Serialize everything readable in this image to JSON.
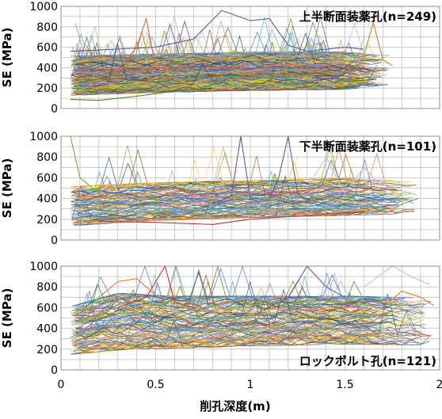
{
  "figure": {
    "xlabel": "削孔深度(m)"
  },
  "chart_data": [
    {
      "type": "line",
      "title": "上半断面装薬孔(n=249)",
      "ylabel": "SE (MPa)",
      "xlim": [
        0,
        2
      ],
      "ylim": [
        0,
        1000
      ],
      "yticks": [
        0,
        200,
        400,
        600,
        800,
        1000
      ],
      "xticks": [
        0,
        0.5,
        1,
        1.5,
        2
      ],
      "grid": true,
      "n_lines": 249,
      "depth_range": [
        0.05,
        1.75
      ],
      "band": [
        [
          0.05,
          120,
          520
        ],
        [
          0.5,
          150,
          540
        ],
        [
          1.0,
          170,
          560
        ],
        [
          1.5,
          180,
          560
        ],
        [
          1.75,
          230,
          520
        ]
      ],
      "median": [
        [
          0.05,
          270
        ],
        [
          0.5,
          300
        ],
        [
          1.0,
          310
        ],
        [
          1.5,
          320
        ],
        [
          1.75,
          350
        ]
      ],
      "highlights": [
        {
          "color": "#5a5aa6",
          "points": [
            [
              0.05,
              560
            ],
            [
              0.5,
              600
            ],
            [
              0.7,
              680
            ],
            [
              0.85,
              960
            ],
            [
              1.0,
              860
            ],
            [
              1.1,
              880
            ],
            [
              1.2,
              620
            ],
            [
              1.3,
              560
            ],
            [
              1.5,
              600
            ],
            [
              1.6,
              580
            ]
          ]
        },
        {
          "color": "#e0662a",
          "points": [
            [
              0.3,
              380
            ],
            [
              0.4,
              600
            ],
            [
              0.45,
              880
            ],
            [
              0.5,
              400
            ],
            [
              0.6,
              380
            ]
          ]
        },
        {
          "color": "#4d7b2a",
          "points": [
            [
              0.05,
              90
            ],
            [
              0.2,
              80
            ],
            [
              0.4,
              120
            ],
            [
              0.6,
              170
            ],
            [
              0.8,
              200
            ]
          ]
        },
        {
          "color": "#e07b2a",
          "points": [
            [
              1.55,
              350
            ],
            [
              1.6,
              520
            ],
            [
              1.65,
              840
            ],
            [
              1.7,
              480
            ],
            [
              1.75,
              420
            ]
          ]
        },
        {
          "color": "#a8a8d8",
          "points": [
            [
              1.25,
              500
            ],
            [
              1.35,
              640
            ],
            [
              1.45,
              480
            ],
            [
              1.6,
              520
            ]
          ]
        }
      ]
    },
    {
      "type": "line",
      "title": "下半断面装薬孔(n=101)",
      "ylabel": "SE (MPa)",
      "xlim": [
        0,
        2
      ],
      "ylim": [
        0,
        1000
      ],
      "yticks": [
        0,
        200,
        400,
        600,
        800,
        1000
      ],
      "xticks": [
        0,
        0.5,
        1,
        1.5,
        2
      ],
      "grid": true,
      "n_lines": 101,
      "depth_range": [
        0.05,
        1.9
      ],
      "band": [
        [
          0.05,
          130,
          520
        ],
        [
          0.5,
          180,
          560
        ],
        [
          1.0,
          210,
          580
        ],
        [
          1.5,
          230,
          600
        ],
        [
          1.9,
          250,
          560
        ]
      ],
      "median": [
        [
          0.05,
          300
        ],
        [
          0.5,
          330
        ],
        [
          1.0,
          350
        ],
        [
          1.5,
          360
        ],
        [
          1.9,
          380
        ]
      ],
      "highlights": [
        {
          "color": "#5a5aa6",
          "points": [
            [
              0.8,
              350
            ],
            [
              0.9,
              420
            ],
            [
              0.95,
              1000
            ],
            [
              1.0,
              400
            ],
            [
              1.05,
              360
            ]
          ]
        },
        {
          "color": "#5a5aa6",
          "points": [
            [
              1.1,
              400
            ],
            [
              1.15,
              600
            ],
            [
              1.2,
              1000
            ],
            [
              1.25,
              450
            ],
            [
              1.3,
              380
            ]
          ]
        },
        {
          "color": "#7aa83c",
          "points": [
            [
              0.05,
              1000
            ],
            [
              0.1,
              600
            ],
            [
              0.2,
              450
            ],
            [
              0.3,
              380
            ]
          ]
        },
        {
          "color": "#c0392b",
          "points": [
            [
              0.2,
              180
            ],
            [
              0.5,
              170
            ],
            [
              0.8,
              150
            ],
            [
              1.0,
              200
            ],
            [
              1.4,
              250
            ],
            [
              1.6,
              270
            ]
          ]
        },
        {
          "color": "#d9b3d9",
          "points": [
            [
              1.3,
              500
            ],
            [
              1.4,
              800
            ],
            [
              1.5,
              450
            ],
            [
              1.6,
              700
            ],
            [
              1.7,
              500
            ]
          ]
        }
      ]
    },
    {
      "type": "line",
      "title": "ロックボルト孔(n=121)",
      "ylabel": "SE (MPa)",
      "xlim": [
        0,
        2
      ],
      "ylim": [
        0,
        1000
      ],
      "yticks": [
        0,
        200,
        400,
        600,
        800,
        1000
      ],
      "xticks": [
        0,
        0.5,
        1,
        1.5,
        2
      ],
      "grid": true,
      "n_lines": 121,
      "depth_range": [
        0.05,
        1.97
      ],
      "band": [
        [
          0.05,
          140,
          620
        ],
        [
          0.3,
          180,
          750
        ],
        [
          0.6,
          200,
          720
        ],
        [
          1.0,
          220,
          720
        ],
        [
          1.5,
          240,
          720
        ],
        [
          1.97,
          230,
          700
        ]
      ],
      "median": [
        [
          0.05,
          320
        ],
        [
          0.3,
          400
        ],
        [
          0.6,
          400
        ],
        [
          1.0,
          410
        ],
        [
          1.5,
          420
        ],
        [
          1.97,
          420
        ]
      ],
      "highlights": [
        {
          "color": "#c0392b",
          "points": [
            [
              0.3,
              600
            ],
            [
              0.45,
              700
            ],
            [
              0.55,
              1000
            ],
            [
              0.6,
              650
            ],
            [
              0.7,
              600
            ]
          ]
        },
        {
          "color": "#e07b2a",
          "points": [
            [
              0.2,
              700
            ],
            [
              0.3,
              850
            ],
            [
              0.4,
              880
            ],
            [
              0.5,
              720
            ]
          ]
        },
        {
          "color": "#5a5aa6",
          "points": [
            [
              1.2,
              700
            ],
            [
              1.3,
              1000
            ],
            [
              1.4,
              800
            ],
            [
              1.5,
              700
            ]
          ]
        },
        {
          "color": "#d9b3d9",
          "points": [
            [
              1.6,
              800
            ],
            [
              1.75,
              1000
            ],
            [
              1.85,
              900
            ],
            [
              1.95,
              820
            ]
          ]
        },
        {
          "color": "#e07b2a",
          "points": [
            [
              1.7,
              600
            ],
            [
              1.8,
              760
            ],
            [
              1.9,
              700
            ],
            [
              1.97,
              620
            ]
          ]
        }
      ]
    }
  ]
}
